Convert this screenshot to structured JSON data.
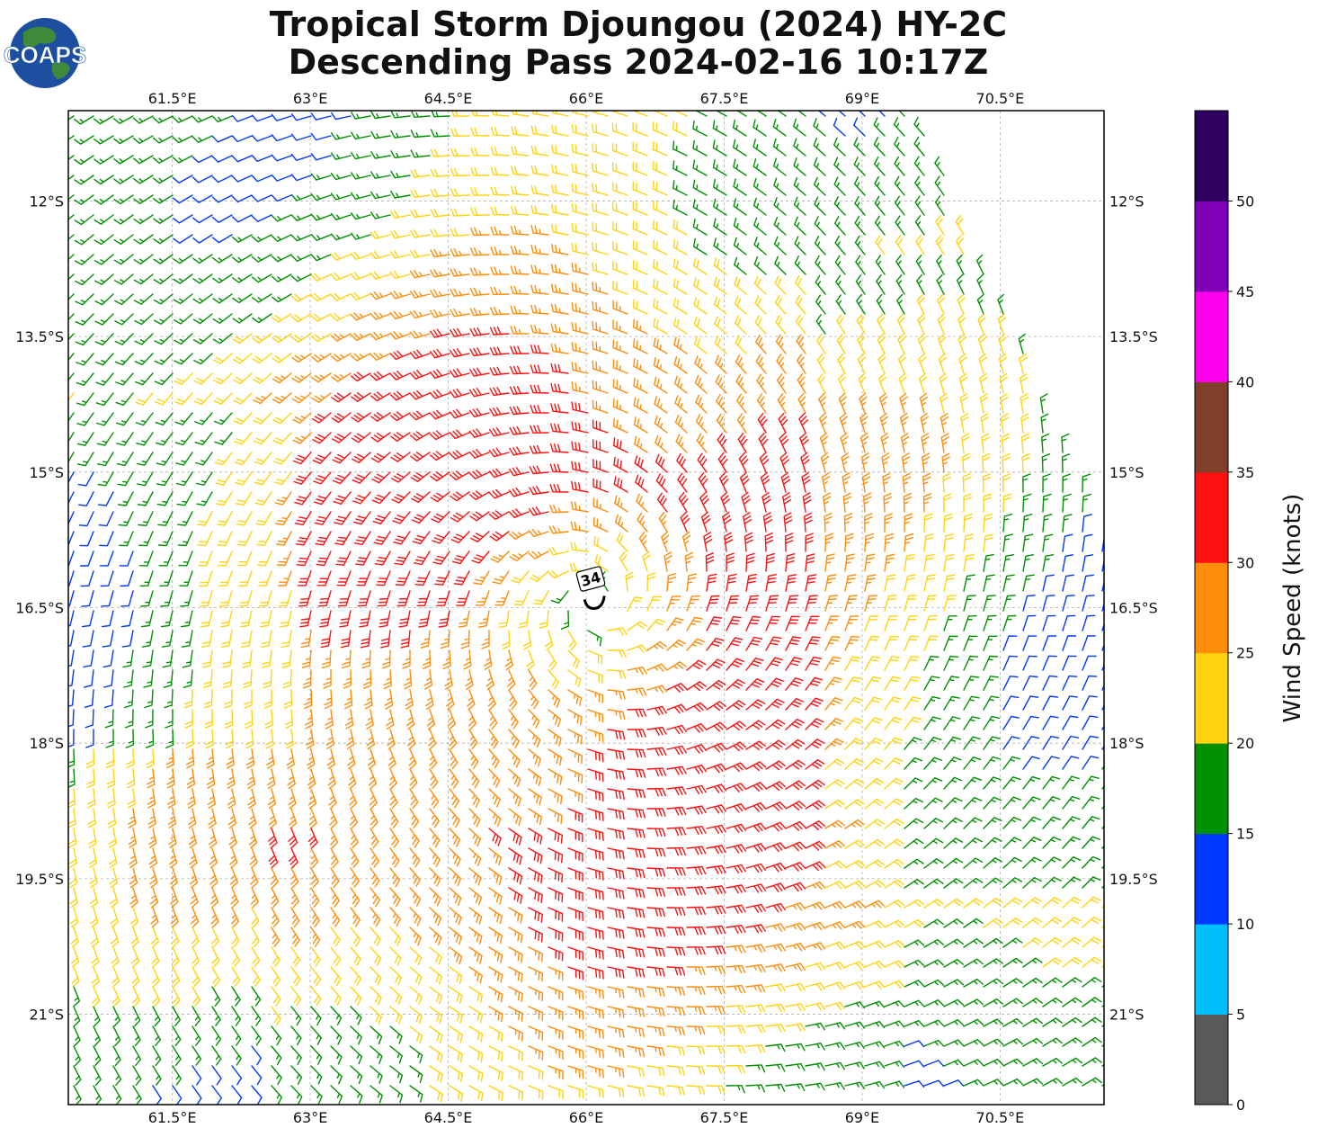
{
  "title": {
    "line1": "Tropical Storm Djoungou (2024) HY-2C",
    "line2": "Descending Pass 2024-02-16 10:17Z"
  },
  "logo": {
    "text": "COAPS",
    "globe_color": "#1c4fa0",
    "land_color": "#3f8a3a"
  },
  "map": {
    "lon_ticks": [
      {
        "value": 61.5,
        "label": "61.5°E"
      },
      {
        "value": 63.0,
        "label": "63°E"
      },
      {
        "value": 64.5,
        "label": "64.5°E"
      },
      {
        "value": 66.0,
        "label": "66°E"
      },
      {
        "value": 67.5,
        "label": "67.5°E"
      },
      {
        "value": 69.0,
        "label": "69°E"
      },
      {
        "value": 70.5,
        "label": "70.5°E"
      }
    ],
    "lat_ticks": [
      {
        "value": -12.0,
        "label": "12°S"
      },
      {
        "value": -13.5,
        "label": "13.5°S"
      },
      {
        "value": -15.0,
        "label": "15°S"
      },
      {
        "value": -16.5,
        "label": "16.5°S"
      },
      {
        "value": -18.0,
        "label": "18°S"
      },
      {
        "value": -19.5,
        "label": "19.5°S"
      },
      {
        "value": -21.0,
        "label": "21°S"
      }
    ],
    "lon_range": [
      60.37,
      71.63
    ],
    "lat_range": [
      -22.0,
      -11.0
    ],
    "grid": true,
    "storm_center": {
      "lon": 66.1,
      "lat": -16.45
    },
    "contour_label": "34"
  },
  "colorbar": {
    "label": "Wind Speed (knots)",
    "ticks": [
      "0",
      "5",
      "10",
      "15",
      "20",
      "25",
      "30",
      "35",
      "40",
      "45",
      "50"
    ],
    "bins": [
      {
        "min": 0,
        "max": 5,
        "color": "#595959"
      },
      {
        "min": 5,
        "max": 10,
        "color": "#00bfff"
      },
      {
        "min": 10,
        "max": 15,
        "color": "#0038ff"
      },
      {
        "min": 15,
        "max": 20,
        "color": "#009000"
      },
      {
        "min": 20,
        "max": 25,
        "color": "#ffd310"
      },
      {
        "min": 25,
        "max": 30,
        "color": "#ff8c0a"
      },
      {
        "min": 30,
        "max": 35,
        "color": "#ff1010"
      },
      {
        "min": 35,
        "max": 40,
        "color": "#7f3f28"
      },
      {
        "min": 40,
        "max": 45,
        "color": "#ff00ee"
      },
      {
        "min": 45,
        "max": 50,
        "color": "#8000b8"
      },
      {
        "min": 50,
        "max": 55,
        "color": "#2e0060"
      }
    ]
  }
}
